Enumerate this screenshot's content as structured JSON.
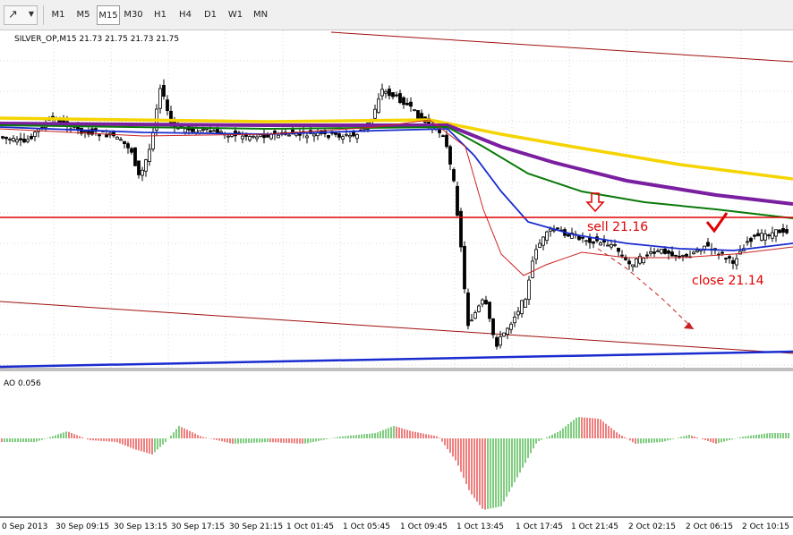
{
  "toolbar": {
    "tool_icon": "cursor-dropdown-icon",
    "timeframes": [
      "M1",
      "M5",
      "M15",
      "M30",
      "H1",
      "H4",
      "D1",
      "W1",
      "MN"
    ],
    "active_timeframe": "M15"
  },
  "chart_data": [
    {
      "type": "candlestick",
      "title": "SILVER_OP,M15  21.73 21.75 21.73 21.75",
      "annotations": [
        {
          "text": "sell 21.16",
          "color": "#e00000",
          "marker": "down-arrow"
        },
        {
          "text": "close 21.14",
          "color": "#e00000",
          "marker": "checkmark"
        }
      ],
      "horizontal_line": {
        "value": 21.16,
        "color": "#e00000"
      },
      "moving_averages": [
        {
          "color": "#f5d400"
        },
        {
          "color": "#7a1fa0"
        },
        {
          "color": "#0a7a0a"
        },
        {
          "color": "#1a2ccf"
        },
        {
          "color": "#cc2222"
        }
      ],
      "trend_lines": [
        {
          "color": "#a01010",
          "description": "upper channel"
        },
        {
          "color": "#a01010",
          "description": "lower channel"
        },
        {
          "color": "#1a2ccf",
          "description": "support"
        }
      ]
    },
    {
      "type": "bar",
      "title": "AO 0.056",
      "colors": {
        "up": "#009900",
        "down": "#dd0000"
      },
      "x_ticks": [
        "0 Sep 2013",
        "30 Sep 09:15",
        "30 Sep 13:15",
        "30 Sep 17:15",
        "30 Sep 21:15",
        "1 Oct 01:45",
        "1 Oct 05:45",
        "1 Oct 09:45",
        "1 Oct 13:45",
        "1 Oct 17:45",
        "1 Oct 21:45",
        "2 Oct 02:15",
        "2 Oct 06:15",
        "2 Oct 10:15"
      ]
    }
  ]
}
